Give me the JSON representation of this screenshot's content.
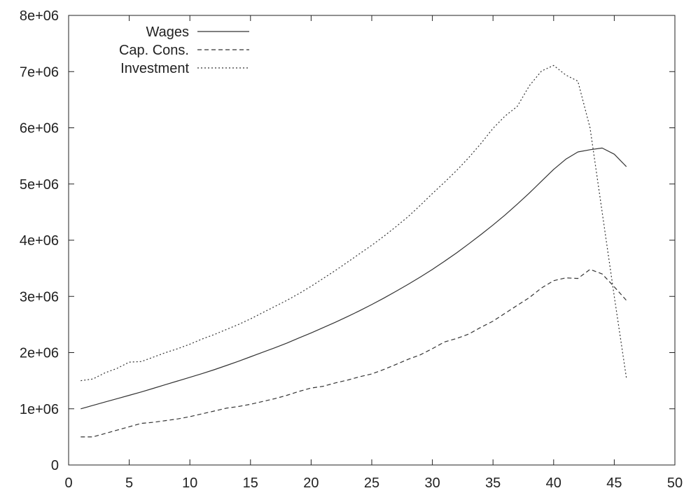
{
  "chart_data": {
    "type": "line",
    "xlim": [
      0,
      50
    ],
    "ylim": [
      0,
      8000000
    ],
    "x_ticks": [
      0,
      5,
      10,
      15,
      20,
      25,
      30,
      35,
      40,
      45,
      50
    ],
    "x_tick_labels": [
      "0",
      "5",
      "10",
      "15",
      "20",
      "25",
      "30",
      "35",
      "40",
      "45",
      "50"
    ],
    "y_ticks": [
      0,
      1000000,
      2000000,
      3000000,
      4000000,
      5000000,
      6000000,
      7000000,
      8000000
    ],
    "y_tick_labels": [
      "0",
      "1e+06",
      "2e+06",
      "3e+06",
      "4e+06",
      "5e+06",
      "6e+06",
      "7e+06",
      "8e+06"
    ],
    "grid": false,
    "legend_position": "top-left",
    "series": [
      {
        "name": "Wages",
        "dash": "solid",
        "x": [
          1,
          2,
          3,
          4,
          5,
          6,
          7,
          8,
          9,
          10,
          11,
          12,
          13,
          14,
          15,
          16,
          17,
          18,
          19,
          20,
          21,
          22,
          23,
          24,
          25,
          26,
          27,
          28,
          29,
          30,
          31,
          32,
          33,
          34,
          35,
          36,
          37,
          38,
          39,
          40,
          41,
          42,
          43,
          44,
          45,
          46
        ],
        "y": [
          1000000,
          1060000,
          1120000,
          1180000,
          1240000,
          1300000,
          1365000,
          1430000,
          1495000,
          1560000,
          1625000,
          1695000,
          1770000,
          1845000,
          1925000,
          2005000,
          2085000,
          2170000,
          2260000,
          2350000,
          2445000,
          2540000,
          2640000,
          2745000,
          2855000,
          2970000,
          3090000,
          3215000,
          3345000,
          3480000,
          3625000,
          3775000,
          3935000,
          4100000,
          4270000,
          4450000,
          4640000,
          4840000,
          5050000,
          5260000,
          5440000,
          5570000,
          5610000,
          5640000,
          5530000,
          5310000
        ]
      },
      {
        "name": "Cap. Cons.",
        "dash": "dashed",
        "x": [
          1,
          2,
          3,
          4,
          5,
          6,
          7,
          8,
          9,
          10,
          11,
          12,
          13,
          14,
          15,
          16,
          17,
          18,
          19,
          20,
          21,
          22,
          23,
          24,
          25,
          26,
          27,
          28,
          29,
          30,
          31,
          32,
          33,
          34,
          35,
          36,
          37,
          38,
          39,
          40,
          41,
          42,
          43,
          44,
          45,
          46
        ],
        "y": [
          500000,
          500000,
          560000,
          620000,
          680000,
          740000,
          760000,
          790000,
          820000,
          860000,
          910000,
          960000,
          1010000,
          1040000,
          1080000,
          1130000,
          1180000,
          1240000,
          1310000,
          1370000,
          1400000,
          1460000,
          1510000,
          1570000,
          1620000,
          1700000,
          1790000,
          1880000,
          1960000,
          2070000,
          2190000,
          2250000,
          2330000,
          2450000,
          2560000,
          2700000,
          2840000,
          2980000,
          3150000,
          3280000,
          3330000,
          3320000,
          3480000,
          3400000,
          3170000,
          2930000
        ]
      },
      {
        "name": "Investment",
        "dash": "dotted",
        "x": [
          1,
          2,
          3,
          4,
          5,
          6,
          7,
          8,
          9,
          10,
          11,
          12,
          13,
          14,
          15,
          16,
          17,
          18,
          19,
          20,
          21,
          22,
          23,
          24,
          25,
          26,
          27,
          28,
          29,
          30,
          31,
          32,
          33,
          34,
          35,
          36,
          37,
          38,
          39,
          40,
          41,
          42,
          43,
          44,
          45,
          46
        ],
        "y": [
          1500000,
          1530000,
          1640000,
          1720000,
          1830000,
          1840000,
          1920000,
          2000000,
          2070000,
          2150000,
          2240000,
          2320000,
          2410000,
          2500000,
          2600000,
          2710000,
          2820000,
          2930000,
          3050000,
          3180000,
          3320000,
          3460000,
          3610000,
          3760000,
          3910000,
          4070000,
          4240000,
          4420000,
          4620000,
          4830000,
          5030000,
          5240000,
          5470000,
          5720000,
          5990000,
          6210000,
          6380000,
          6750000,
          7010000,
          7110000,
          6940000,
          6830000,
          6000000,
          4500000,
          3000000,
          1550000
        ]
      }
    ]
  }
}
